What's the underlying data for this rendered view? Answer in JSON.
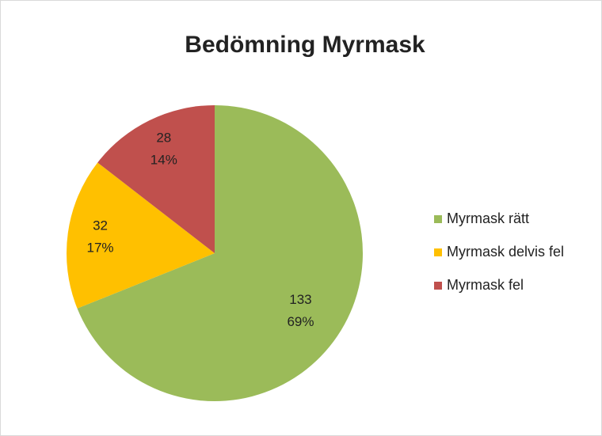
{
  "chart_data": {
    "type": "pie",
    "title": "Bedömning Myrmask",
    "categories": [
      "Myrmask rätt",
      "Myrmask delvis fel",
      "Myrmask fel"
    ],
    "values": [
      133,
      32,
      28
    ],
    "percent_labels": [
      "69%",
      "17%",
      "14%"
    ],
    "colors": [
      "#9bbb59",
      "#ffc000",
      "#c0504d"
    ],
    "legend": "right"
  }
}
